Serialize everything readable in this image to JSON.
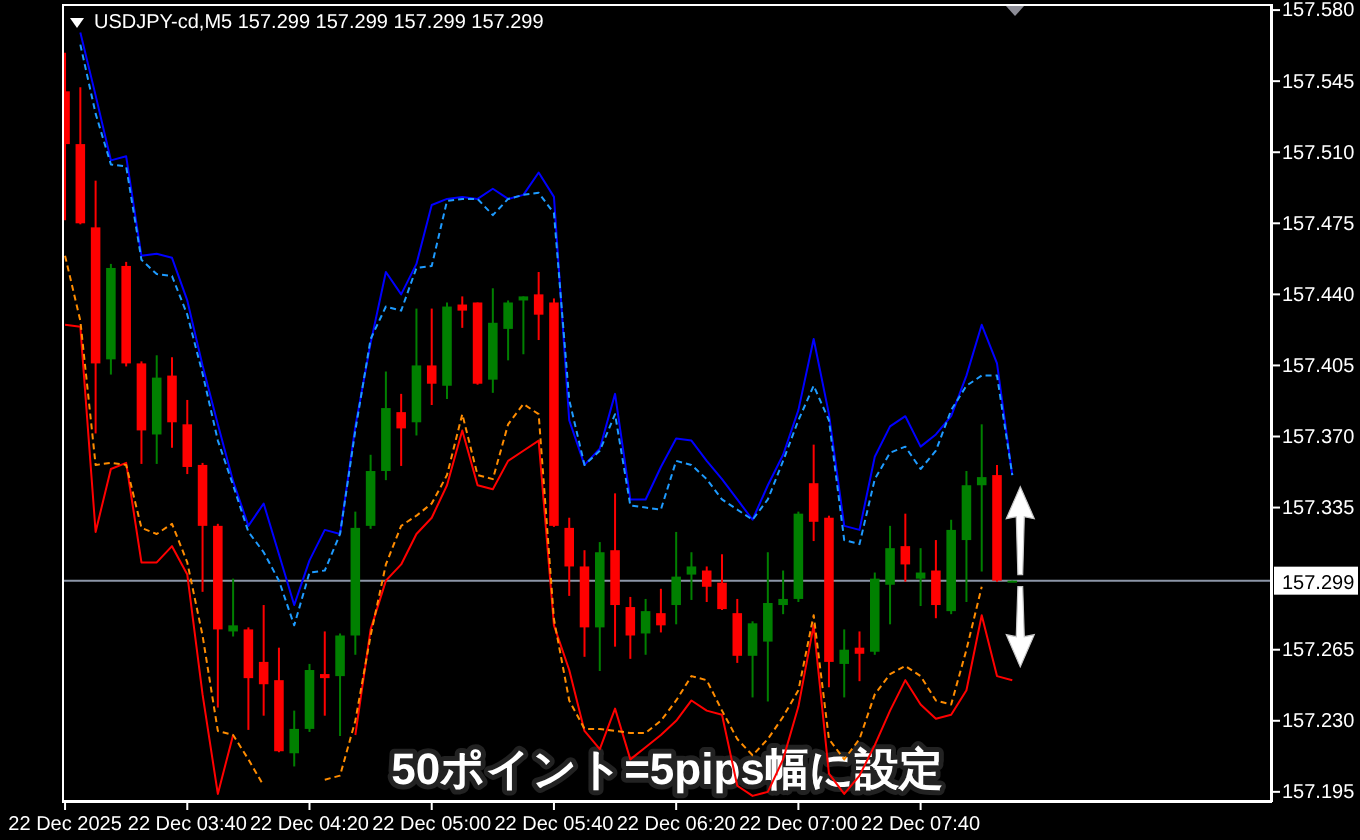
{
  "chart_data": {
    "type": "candlestick",
    "title": "USDJPY-cd,M5 157.299 157.299 157.299 157.299",
    "x": [
      "2025-12-22T03:00",
      "2025-12-22T03:05",
      "2025-12-22T03:10",
      "2025-12-22T03:15",
      "2025-12-22T03:20",
      "2025-12-22T03:25",
      "2025-12-22T03:30",
      "2025-12-22T03:35",
      "2025-12-22T03:40",
      "2025-12-22T03:45",
      "2025-12-22T03:50",
      "2025-12-22T03:55",
      "2025-12-22T04:00",
      "2025-12-22T04:05",
      "2025-12-22T04:10",
      "2025-12-22T04:15",
      "2025-12-22T04:20",
      "2025-12-22T04:25",
      "2025-12-22T04:30",
      "2025-12-22T04:35",
      "2025-12-22T04:40",
      "2025-12-22T04:45",
      "2025-12-22T04:50",
      "2025-12-22T04:55",
      "2025-12-22T05:00",
      "2025-12-22T05:05",
      "2025-12-22T05:10",
      "2025-12-22T05:15",
      "2025-12-22T05:20",
      "2025-12-22T05:25",
      "2025-12-22T05:30",
      "2025-12-22T05:35",
      "2025-12-22T05:40",
      "2025-12-22T05:45",
      "2025-12-22T05:50",
      "2025-12-22T05:55",
      "2025-12-22T06:00",
      "2025-12-22T06:05",
      "2025-12-22T06:10",
      "2025-12-22T06:15",
      "2025-12-22T06:20",
      "2025-12-22T06:25",
      "2025-12-22T06:30",
      "2025-12-22T06:35",
      "2025-12-22T06:40",
      "2025-12-22T06:45",
      "2025-12-22T06:50",
      "2025-12-22T06:55",
      "2025-12-22T07:00",
      "2025-12-22T07:05",
      "2025-12-22T07:10",
      "2025-12-22T07:15",
      "2025-12-22T07:20",
      "2025-12-22T07:25",
      "2025-12-22T07:30",
      "2025-12-22T07:35",
      "2025-12-22T07:40",
      "2025-12-22T07:45",
      "2025-12-22T07:50",
      "2025-12-22T07:55",
      "2025-12-22T08:00",
      "2025-12-22T08:05",
      "2025-12-22T08:10"
    ],
    "ohlc": [
      [
        157.54,
        157.559,
        157.477,
        157.514
      ],
      [
        157.514,
        157.542,
        157.475,
        157.475
      ],
      [
        157.473,
        157.496,
        157.372,
        157.406
      ],
      [
        157.408,
        157.455,
        157.401,
        157.453
      ],
      [
        157.454,
        157.456,
        157.405,
        157.406
      ],
      [
        157.406,
        157.407,
        157.357,
        157.373
      ],
      [
        157.371,
        157.41,
        157.357,
        157.399
      ],
      [
        157.4,
        157.409,
        157.365,
        157.377
      ],
      [
        157.376,
        157.388,
        157.352,
        157.355
      ],
      [
        157.356,
        157.357,
        157.294,
        157.326
      ],
      [
        157.326,
        157.327,
        157.237,
        157.275
      ],
      [
        157.274,
        157.3,
        157.272,
        157.277
      ],
      [
        157.275,
        157.276,
        157.226,
        157.251
      ],
      [
        157.259,
        157.287,
        157.233,
        157.248
      ],
      [
        157.25,
        157.266,
        157.215,
        157.215
      ],
      [
        157.214,
        157.235,
        157.208,
        157.226
      ],
      [
        157.226,
        157.258,
        157.225,
        157.255
      ],
      [
        157.253,
        157.274,
        157.233,
        157.251
      ],
      [
        157.252,
        157.273,
        157.223,
        157.272
      ],
      [
        157.272,
        157.333,
        157.263,
        157.325
      ],
      [
        157.326,
        157.361,
        157.325,
        157.353
      ],
      [
        157.353,
        157.402,
        157.349,
        157.384
      ],
      [
        157.382,
        157.391,
        157.356,
        157.374
      ],
      [
        157.377,
        157.433,
        157.371,
        157.405
      ],
      [
        157.405,
        157.433,
        157.386,
        157.396
      ],
      [
        157.395,
        157.436,
        157.389,
        157.434
      ],
      [
        157.435,
        157.439,
        157.424,
        157.432
      ],
      [
        157.436,
        157.436,
        157.396,
        157.396
      ],
      [
        157.398,
        157.443,
        157.392,
        157.426
      ],
      [
        157.423,
        157.437,
        157.408,
        157.436
      ],
      [
        157.437,
        157.439,
        157.411,
        157.439
      ],
      [
        157.44,
        157.451,
        157.418,
        157.43
      ],
      [
        157.436,
        157.438,
        157.326,
        157.326
      ],
      [
        157.325,
        157.33,
        157.292,
        157.306
      ],
      [
        157.306,
        157.314,
        157.262,
        157.276
      ],
      [
        157.276,
        157.318,
        157.255,
        157.313
      ],
      [
        157.314,
        157.342,
        157.267,
        157.287
      ],
      [
        157.286,
        157.291,
        157.261,
        157.272
      ],
      [
        157.273,
        157.29,
        157.263,
        157.284
      ],
      [
        157.283,
        157.295,
        157.274,
        157.277
      ],
      [
        157.287,
        157.323,
        157.278,
        157.301
      ],
      [
        157.302,
        157.313,
        157.29,
        157.306
      ],
      [
        157.304,
        157.306,
        157.289,
        157.296
      ],
      [
        157.298,
        157.312,
        157.285,
        157.285
      ],
      [
        157.283,
        157.29,
        157.259,
        157.262
      ],
      [
        157.262,
        157.279,
        157.242,
        157.278
      ],
      [
        157.269,
        157.313,
        157.24,
        157.288
      ],
      [
        157.287,
        157.304,
        157.283,
        157.29
      ],
      [
        157.29,
        157.333,
        157.289,
        157.332
      ],
      [
        157.347,
        157.366,
        157.319,
        157.328
      ],
      [
        157.33,
        157.331,
        157.247,
        157.259
      ],
      [
        157.258,
        157.275,
        157.242,
        157.265
      ],
      [
        157.266,
        157.274,
        157.25,
        157.263
      ],
      [
        157.264,
        157.303,
        157.263,
        157.3
      ],
      [
        157.297,
        157.326,
        157.278,
        157.315
      ],
      [
        157.316,
        157.332,
        157.299,
        157.307
      ],
      [
        157.3,
        157.315,
        157.287,
        157.303
      ],
      [
        157.304,
        157.319,
        157.281,
        157.287
      ],
      [
        157.284,
        157.329,
        157.283,
        157.324
      ],
      [
        157.319,
        157.353,
        157.289,
        157.346
      ],
      [
        157.346,
        157.376,
        157.304,
        157.35
      ],
      [
        157.351,
        157.356,
        157.299,
        157.299
      ],
      [
        157.299,
        157.299,
        157.299,
        157.299
      ]
    ],
    "colors": [
      "#ff0000",
      "#ff0000",
      "#ff0000",
      "#008000",
      "#ff0000",
      "#ff0000",
      "#008000",
      "#ff0000",
      "#ff0000",
      "#ff0000",
      "#ff0000",
      "#008000",
      "#ff0000",
      "#ff0000",
      "#ff0000",
      "#008000",
      "#008000",
      "#ff0000",
      "#008000",
      "#008000",
      "#008000",
      "#008000",
      "#ff0000",
      "#008000",
      "#ff0000",
      "#008000",
      "#ff0000",
      "#ff0000",
      "#008000",
      "#008000",
      "#008000",
      "#ff0000",
      "#ff0000",
      "#ff0000",
      "#ff0000",
      "#008000",
      "#ff0000",
      "#ff0000",
      "#008000",
      "#ff0000",
      "#008000",
      "#008000",
      "#ff0000",
      "#ff0000",
      "#ff0000",
      "#008000",
      "#008000",
      "#008000",
      "#008000",
      "#ff0000",
      "#ff0000",
      "#008000",
      "#ff0000",
      "#008000",
      "#008000",
      "#ff0000",
      "#008000",
      "#ff0000",
      "#008000",
      "#008000",
      "#008000",
      "#ff0000",
      "#008000"
    ],
    "series": [
      {
        "type": "line",
        "color": "#0000ff",
        "line_style": "solid",
        "values": [
          null,
          157.569,
          157.538,
          157.506,
          157.508,
          157.459,
          157.46,
          157.458,
          157.437,
          157.405,
          157.376,
          157.348,
          157.326,
          157.337,
          157.312,
          157.287,
          157.309,
          157.324,
          157.322,
          157.375,
          157.416,
          157.451,
          157.44,
          157.455,
          157.484,
          157.487,
          157.488,
          157.487,
          157.492,
          157.487,
          157.489,
          157.5,
          157.488,
          157.378,
          157.356,
          157.364,
          157.391,
          157.339,
          157.339,
          157.355,
          157.369,
          157.368,
          157.358,
          157.349,
          157.339,
          157.329,
          157.346,
          157.361,
          157.383,
          157.418,
          157.381,
          157.326,
          157.324,
          157.36,
          157.375,
          157.38,
          157.365,
          157.371,
          157.38,
          157.4,
          157.425,
          157.406,
          157.351
        ]
      },
      {
        "type": "line",
        "color": "#1e9bff",
        "line_style": "dashed",
        "values": [
          null,
          157.563,
          157.529,
          157.504,
          157.503,
          157.457,
          157.45,
          157.449,
          157.43,
          157.401,
          157.368,
          157.346,
          157.323,
          157.313,
          157.299,
          157.277,
          157.303,
          157.304,
          157.322,
          157.373,
          157.418,
          157.434,
          157.432,
          157.453,
          157.454,
          157.486,
          157.487,
          157.487,
          157.479,
          157.487,
          157.489,
          157.49,
          157.48,
          157.388,
          157.356,
          157.363,
          157.381,
          157.336,
          157.335,
          157.334,
          157.358,
          157.356,
          157.349,
          157.339,
          157.334,
          157.329,
          157.339,
          157.358,
          157.378,
          157.395,
          157.378,
          157.319,
          157.317,
          157.349,
          157.362,
          157.365,
          157.354,
          157.363,
          157.383,
          157.395,
          157.4,
          157.4,
          157.351
        ]
      },
      {
        "type": "line",
        "color": "#ff0000",
        "line_style": "solid",
        "values": [
          157.425,
          157.424,
          157.323,
          157.354,
          157.357,
          157.308,
          157.308,
          157.316,
          157.302,
          157.243,
          157.194,
          157.223,
          null,
          null,
          null,
          null,
          null,
          null,
          null,
          157.223,
          157.275,
          157.299,
          157.307,
          157.322,
          157.33,
          157.346,
          157.373,
          157.346,
          157.344,
          157.358,
          157.363,
          157.368,
          157.277,
          157.255,
          157.225,
          157.216,
          157.236,
          157.211,
          157.217,
          157.223,
          157.23,
          157.24,
          157.235,
          157.233,
          157.198,
          157.193,
          157.195,
          157.211,
          157.237,
          157.277,
          157.204,
          157.194,
          157.203,
          157.218,
          157.235,
          157.25,
          157.238,
          157.231,
          157.233,
          157.245,
          157.282,
          157.252,
          157.25
        ]
      },
      {
        "type": "line",
        "color": "#ff8c00",
        "line_style": "dashed",
        "values": [
          157.459,
          157.427,
          157.356,
          157.357,
          157.356,
          157.325,
          157.322,
          157.327,
          157.308,
          157.272,
          157.225,
          157.223,
          157.211,
          157.198,
          null,
          null,
          null,
          157.201,
          157.203,
          157.23,
          157.272,
          157.307,
          157.326,
          157.331,
          157.337,
          157.351,
          157.381,
          157.351,
          157.349,
          157.376,
          157.386,
          157.381,
          157.28,
          157.24,
          157.226,
          157.226,
          157.225,
          157.224,
          157.224,
          157.23,
          157.24,
          157.252,
          157.25,
          157.235,
          157.221,
          157.213,
          157.221,
          157.232,
          157.245,
          157.282,
          157.221,
          157.211,
          157.221,
          157.243,
          157.253,
          157.257,
          157.252,
          157.24,
          157.238,
          157.265,
          157.296,
          null,
          null
        ]
      }
    ],
    "xlim": [
      "2025-12-22T02:59",
      "2025-12-22T09:35"
    ],
    "xticks": [
      {
        "value": "2025-12-22T03:00",
        "label": "22 Dec 2025"
      },
      {
        "value": "2025-12-22T03:40",
        "label": "22 Dec 03:40"
      },
      {
        "value": "2025-12-22T04:20",
        "label": "22 Dec 04:20"
      },
      {
        "value": "2025-12-22T05:00",
        "label": "22 Dec 05:00"
      },
      {
        "value": "2025-12-22T05:40",
        "label": "22 Dec 05:40"
      },
      {
        "value": "2025-12-22T06:20",
        "label": "22 Dec 06:20"
      },
      {
        "value": "2025-12-22T07:00",
        "label": "22 Dec 07:00"
      },
      {
        "value": "2025-12-22T07:40",
        "label": "22 Dec 07:40"
      }
    ],
    "ylim": [
      157.19,
      157.583
    ],
    "yticks": [
      {
        "value": 157.58,
        "label": "157.580"
      },
      157.545,
      {
        "value": 157.51,
        "label": "157.510"
      },
      157.475,
      {
        "value": 157.44,
        "label": "157.440"
      },
      157.405,
      {
        "value": 157.37,
        "label": "157.370"
      },
      157.335,
      157.265,
      {
        "value": 157.23,
        "label": "157.230"
      },
      157.195
    ],
    "ref_lines": [
      {
        "axis": "y",
        "value": 157.299,
        "label": "157.299",
        "color": "#8c96a8"
      }
    ],
    "annotations": [
      "50ポイント=5pips幅に設定"
    ]
  }
}
